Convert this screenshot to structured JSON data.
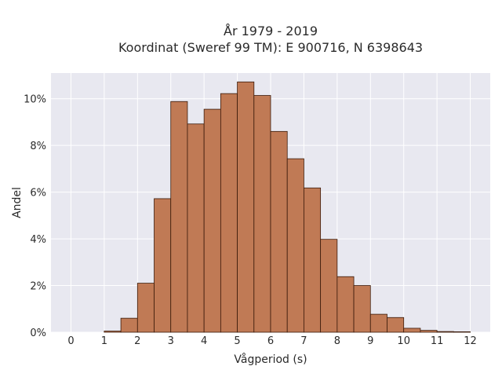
{
  "chart_data": {
    "type": "bar",
    "title": "År 1979 - 2019",
    "subtitle": "Koordinat (Sweref 99 TM): E 900716, N 6398643",
    "xlabel": "Vågperiod (s)",
    "ylabel": "Andel",
    "xlim": [
      -0.6,
      12.6
    ],
    "ylim": [
      0,
      11.1
    ],
    "x_ticks": [
      0,
      1,
      2,
      3,
      4,
      5,
      6,
      7,
      8,
      9,
      10,
      11,
      12
    ],
    "y_ticks": [
      0,
      2,
      4,
      6,
      8,
      10
    ],
    "y_tick_suffix": "%",
    "bin_width": 0.5,
    "grid": true,
    "bar_color": "#c07a55",
    "bar_edge_color": "#3a1a0a",
    "background_color": "#e8e8f0",
    "bins": [
      {
        "start": 1.0,
        "value": 0.05
      },
      {
        "start": 1.5,
        "value": 0.6
      },
      {
        "start": 2.0,
        "value": 2.1
      },
      {
        "start": 2.5,
        "value": 5.72
      },
      {
        "start": 3.0,
        "value": 9.88
      },
      {
        "start": 3.5,
        "value": 8.92
      },
      {
        "start": 4.0,
        "value": 9.55
      },
      {
        "start": 4.5,
        "value": 10.22
      },
      {
        "start": 5.0,
        "value": 10.72
      },
      {
        "start": 5.5,
        "value": 10.14
      },
      {
        "start": 6.0,
        "value": 8.6
      },
      {
        "start": 6.5,
        "value": 7.43
      },
      {
        "start": 7.0,
        "value": 6.18
      },
      {
        "start": 7.5,
        "value": 3.98
      },
      {
        "start": 8.0,
        "value": 2.38
      },
      {
        "start": 8.5,
        "value": 2.0
      },
      {
        "start": 9.0,
        "value": 0.77
      },
      {
        "start": 9.5,
        "value": 0.63
      },
      {
        "start": 10.0,
        "value": 0.17
      },
      {
        "start": 10.5,
        "value": 0.08
      },
      {
        "start": 11.0,
        "value": 0.03
      },
      {
        "start": 11.5,
        "value": 0.02
      }
    ]
  }
}
